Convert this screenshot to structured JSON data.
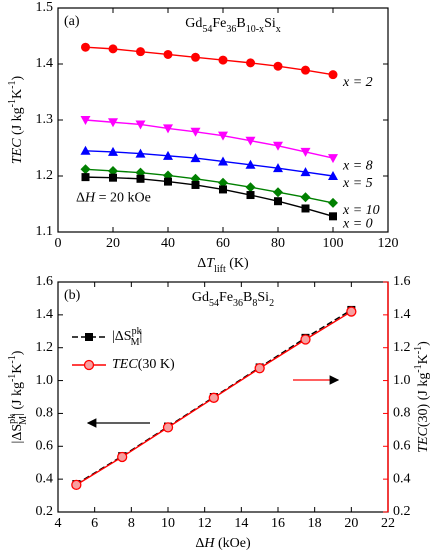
{
  "chart_data": [
    {
      "type": "line",
      "panel": "(a)",
      "title": [
        "Gd",
        "54",
        "Fe",
        "36",
        "B",
        "10-x",
        "Si",
        "x"
      ],
      "x_label": [
        "Δ",
        "T",
        "lift",
        " (K)"
      ],
      "y_label": [
        "TEC",
        " (J kg",
        "-1",
        "K",
        "-1",
        ")"
      ],
      "annotation": [
        "Δ",
        "H",
        " = 20 kOe"
      ],
      "x": [
        10,
        20,
        30,
        40,
        50,
        60,
        70,
        80,
        90,
        100
      ],
      "xlim": [
        0,
        120
      ],
      "xticks": [
        0,
        20,
        40,
        60,
        80,
        100,
        120
      ],
      "ylim": [
        1.1,
        1.5
      ],
      "yticks": [
        1.1,
        1.2,
        1.3,
        1.4,
        1.5
      ],
      "series": [
        {
          "name": "x = 2",
          "color": "#ff0000",
          "marker": "circle",
          "values": [
            1.43,
            1.427,
            1.422,
            1.417,
            1.412,
            1.407,
            1.402,
            1.396,
            1.389,
            1.381
          ]
        },
        {
          "name": "x = 8",
          "color": "#ff00ff",
          "marker": "triangle-down",
          "values": [
            1.3,
            1.296,
            1.292,
            1.285,
            1.279,
            1.272,
            1.263,
            1.254,
            1.243,
            1.232
          ]
        },
        {
          "name": "x = 5",
          "color": "#0000ff",
          "marker": "triangle",
          "values": [
            1.245,
            1.243,
            1.24,
            1.236,
            1.232,
            1.226,
            1.22,
            1.214,
            1.207,
            1.2
          ]
        },
        {
          "name": "x = 10",
          "color": "#008000",
          "marker": "diamond",
          "values": [
            1.212,
            1.209,
            1.206,
            1.201,
            1.195,
            1.188,
            1.18,
            1.171,
            1.162,
            1.152
          ]
        },
        {
          "name": "x = 0",
          "color": "#000000",
          "marker": "square",
          "values": [
            1.198,
            1.197,
            1.195,
            1.19,
            1.184,
            1.176,
            1.166,
            1.155,
            1.142,
            1.128
          ]
        }
      ]
    },
    {
      "type": "line",
      "panel": "(b)",
      "title": [
        "Gd",
        "54",
        "Fe",
        "36",
        "B",
        "8",
        "Si",
        "2"
      ],
      "x_label": [
        "Δ",
        "H",
        " (kOe)"
      ],
      "y_label": [
        "|ΔS",
        "pk",
        "M",
        "| (J kg",
        "-1",
        "K",
        "-1",
        ")"
      ],
      "y2_label": [
        "TEC",
        "(30) (J kg",
        "-1",
        "K",
        "-1",
        ")"
      ],
      "legend": "upper left",
      "x": [
        5,
        7.5,
        10,
        12.5,
        15,
        17.5,
        20
      ],
      "xlim": [
        4,
        22
      ],
      "xticks": [
        4,
        6,
        8,
        10,
        12,
        14,
        16,
        18,
        20,
        22
      ],
      "ylim": [
        0.2,
        1.6
      ],
      "yticks": [
        0.2,
        0.4,
        0.6,
        0.8,
        {
          "value": 1,
          "label": "1.0"
        },
        1.2,
        1.4,
        1.6
      ],
      "y2lim": [
        0.2,
        1.6
      ],
      "y2ticks": [
        0.2,
        0.4,
        0.6,
        0.8,
        {
          "value": 1,
          "label": "1.0"
        },
        1.2,
        1.4,
        1.6
      ],
      "y2_color": "#ff0000",
      "series": [
        {
          "name": [
            "|ΔS",
            "pk",
            "M",
            "|"
          ],
          "color": "#000000",
          "marker": "square",
          "dash": true,
          "values": [
            0.37,
            0.54,
            0.72,
            0.9,
            1.08,
            1.26,
            1.43
          ]
        },
        {
          "name": [
            "TEC",
            "(30 K)"
          ],
          "color": "#ff0000",
          "marker": "circle-half",
          "axis": "y2",
          "values": [
            0.365,
            0.535,
            0.715,
            0.895,
            1.075,
            1.25,
            1.42
          ]
        }
      ]
    }
  ]
}
